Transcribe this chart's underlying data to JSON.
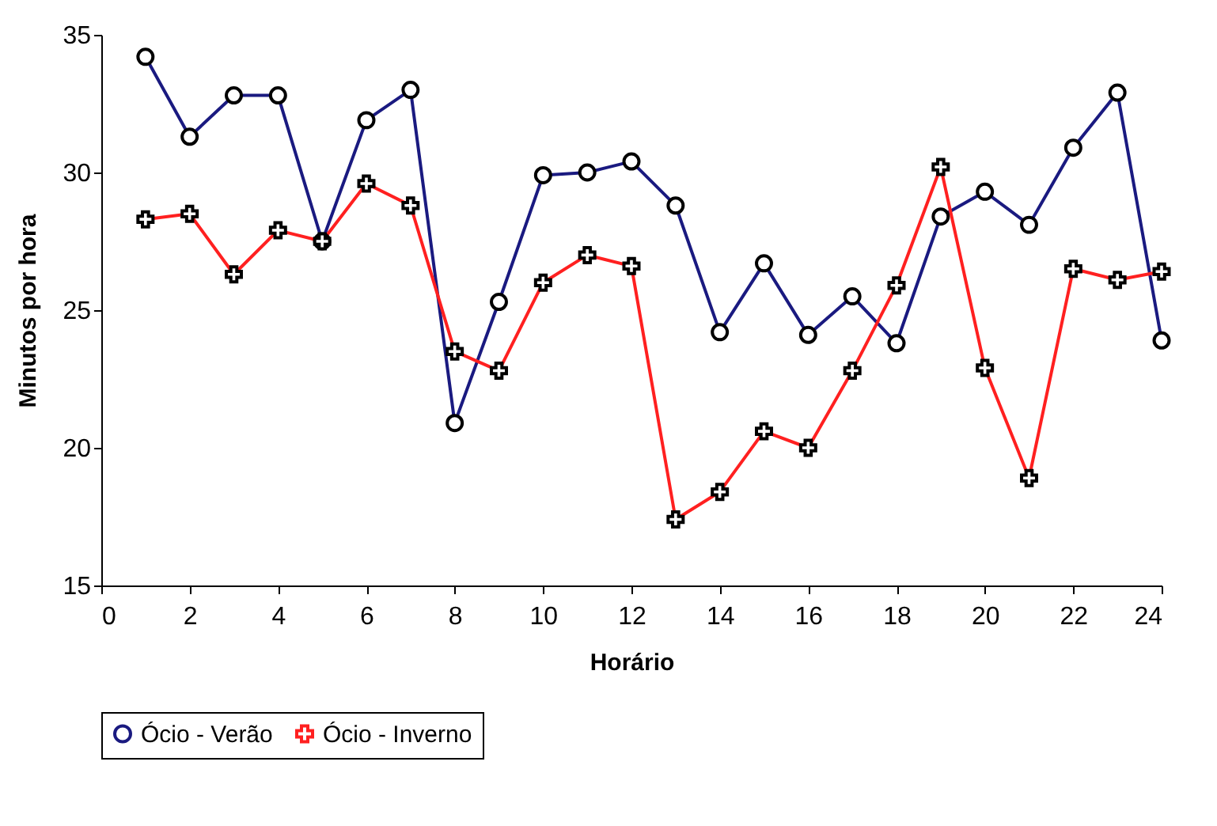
{
  "chart_data": {
    "type": "line",
    "xlabel": "Horário",
    "ylabel": "Minutos por hora",
    "x": [
      1,
      2,
      3,
      4,
      5,
      6,
      7,
      8,
      9,
      10,
      11,
      12,
      13,
      14,
      15,
      16,
      17,
      18,
      19,
      20,
      21,
      22,
      23,
      24
    ],
    "series": [
      {
        "name": "Ócio - Verão",
        "color": "#1a1a80",
        "marker": "circle",
        "values": [
          34.2,
          31.3,
          32.8,
          32.8,
          27.5,
          31.9,
          33.0,
          20.9,
          25.3,
          29.9,
          30.0,
          30.4,
          28.8,
          24.2,
          26.7,
          24.1,
          25.5,
          23.8,
          28.4,
          29.3,
          28.1,
          30.9,
          32.9,
          23.9
        ]
      },
      {
        "name": "Ócio - Inverno",
        "color": "#ff2020",
        "marker": "cross",
        "values": [
          28.3,
          28.5,
          26.3,
          27.9,
          27.5,
          29.6,
          28.8,
          23.5,
          22.8,
          26.0,
          27.0,
          26.6,
          17.4,
          18.4,
          20.6,
          20.0,
          22.8,
          25.9,
          30.2,
          22.9,
          18.9,
          26.5,
          26.1,
          26.4
        ]
      }
    ],
    "xlim": [
      0,
      24
    ],
    "xticks": [
      0,
      2,
      4,
      6,
      8,
      10,
      12,
      14,
      16,
      18,
      20,
      22,
      24
    ],
    "ylim": [
      15,
      35
    ],
    "yticks": [
      15,
      20,
      25,
      30,
      35
    ],
    "grid": false,
    "legend": "bottom",
    "line_style": "solid"
  }
}
